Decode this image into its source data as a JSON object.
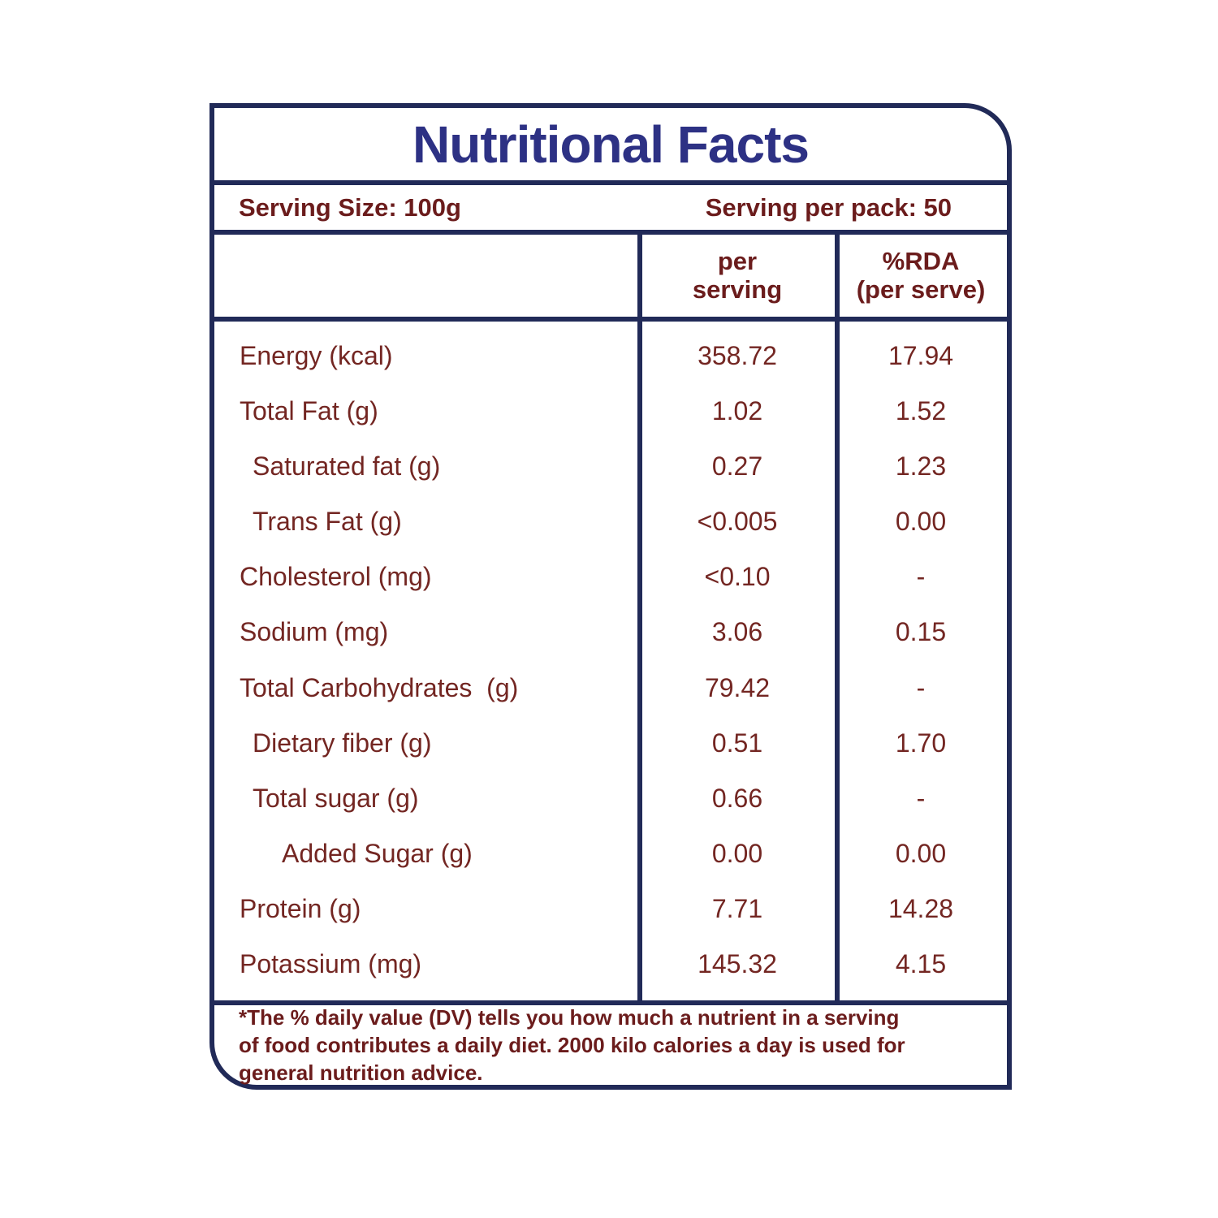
{
  "title": "Nutritional Facts",
  "serving": {
    "size_label": "Serving Size: 100g",
    "pack_label": "Serving per pack: 50"
  },
  "columns": {
    "per_serving_line1": "per",
    "per_serving_line2": "serving",
    "rda_line1": "%RDA",
    "rda_line2": "(per serve)"
  },
  "rows": [
    {
      "label": "Energy (kcal)",
      "indent": 0,
      "per_serving": "358.72",
      "rda": "17.94"
    },
    {
      "label": "Total Fat (g)",
      "indent": 0,
      "per_serving": "1.02",
      "rda": "1.52"
    },
    {
      "label": "Saturated fat (g)",
      "indent": 1,
      "per_serving": "0.27",
      "rda": "1.23"
    },
    {
      "label": "Trans Fat (g)",
      "indent": 1,
      "per_serving": "<0.005",
      "rda": "0.00"
    },
    {
      "label": "Cholesterol (mg)",
      "indent": 0,
      "per_serving": "<0.10",
      "rda": "-"
    },
    {
      "label": "Sodium (mg)",
      "indent": 0,
      "per_serving": "3.06",
      "rda": "0.15"
    },
    {
      "label": "Total Carbohydrates  (g)",
      "indent": 0,
      "per_serving": "79.42",
      "rda": "-"
    },
    {
      "label": "Dietary fiber (g)",
      "indent": 1,
      "per_serving": "0.51",
      "rda": "1.70"
    },
    {
      "label": "Total sugar (g)",
      "indent": 1,
      "per_serving": "0.66",
      "rda": "-"
    },
    {
      "label": "Added Sugar (g)",
      "indent": 2,
      "per_serving": "0.00",
      "rda": "0.00"
    },
    {
      "label": "Protein (g)",
      "indent": 0,
      "per_serving": "7.71",
      "rda": "14.28"
    },
    {
      "label": "Potassium (mg)",
      "indent": 0,
      "per_serving": "145.32",
      "rda": "4.15"
    }
  ],
  "footnote": {
    "line1": "*The % daily value (DV) tells you how much a nutrient in a serving",
    "line2": "of food contributes a daily diet. 2000 kilo calories a day is used for",
    "line3": "general nutrition advice."
  },
  "colors": {
    "border_navy": "#212a58",
    "title_blue": "#2d3184",
    "heading_maroon": "#6b1c1c",
    "body_maroon": "#732622",
    "background": "#ffffff"
  }
}
